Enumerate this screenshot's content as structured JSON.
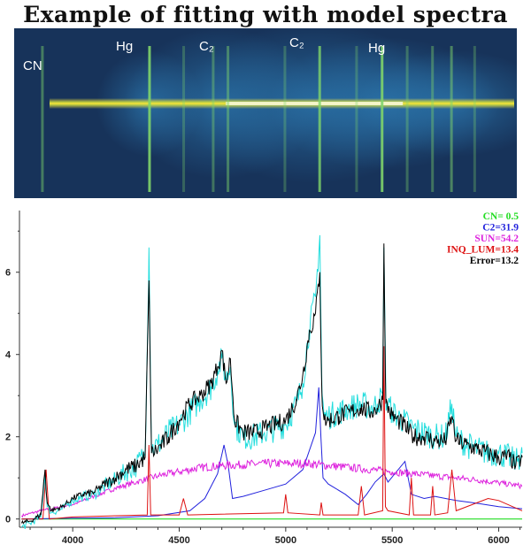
{
  "title": "Example of fitting with model spectra",
  "spectrum_image": {
    "labels": [
      {
        "text": "CN",
        "wavelength": 3840
      },
      {
        "text": "Hg",
        "wavelength": 4358
      },
      {
        "text": "C₂",
        "wavelength": 4700
      },
      {
        "text": "C₂",
        "wavelength": 5140
      },
      {
        "text": "Hg",
        "wavelength": 5461
      }
    ],
    "colors": {
      "background": "#17335a",
      "glow": "#2e7fb8",
      "core": "#ffe23a",
      "hot": "#ffffff"
    }
  },
  "chart_data": {
    "type": "line",
    "title": "",
    "xlabel": "",
    "ylabel": "",
    "xlim": [
      3750,
      6110
    ],
    "ylim": [
      -0.2,
      7.5
    ],
    "xticks": [
      4000,
      4500,
      5000,
      5500,
      6000
    ],
    "yticks": [
      0,
      2,
      4,
      6
    ],
    "grid": false,
    "legend_position": "top-right",
    "legend": [
      {
        "label": "CN= 0.5",
        "color": "#22dd22"
      },
      {
        "label": "C2=31.9",
        "color": "#2222dd"
      },
      {
        "label": "SUN=54.2",
        "color": "#dd22dd"
      },
      {
        "label": "INQ_LUM=13.4",
        "color": "#dd1111"
      },
      {
        "label": "Error=13.2",
        "color": "#000000"
      }
    ],
    "series": [
      {
        "color": "#22dd22",
        "x": [
          3760,
          4000,
          5000,
          6110
        ],
        "y": [
          0.0,
          0.0,
          0.0,
          0.0
        ]
      },
      {
        "color": "#2222dd",
        "x": [
          3760,
          4000,
          4200,
          4400,
          4550,
          4620,
          4680,
          4710,
          4730,
          4750,
          4800,
          4900,
          5000,
          5080,
          5140,
          5155,
          5165,
          5175,
          5200,
          5280,
          5340,
          5380,
          5420,
          5461,
          5480,
          5560,
          5590,
          5650,
          5700,
          5750,
          5800,
          5900,
          6000,
          6110
        ],
        "y": [
          0.0,
          0.02,
          0.03,
          0.08,
          0.2,
          0.5,
          1.1,
          1.8,
          1.3,
          0.5,
          0.55,
          0.7,
          0.85,
          1.2,
          2.1,
          3.2,
          2.0,
          1.0,
          0.85,
          0.6,
          0.35,
          0.6,
          0.9,
          1.1,
          0.9,
          1.4,
          0.6,
          0.5,
          0.55,
          0.5,
          0.45,
          0.38,
          0.3,
          0.25
        ]
      },
      {
        "color": "#dd22dd",
        "x": [
          3760,
          3850,
          4000,
          4100,
          4200,
          4300,
          4400,
          4500,
          4600,
          4700,
          4800,
          4900,
          5000,
          5100,
          5200,
          5300,
          5400,
          5500,
          5600,
          5700,
          5800,
          5900,
          6000,
          6110
        ],
        "y": [
          0.08,
          0.2,
          0.35,
          0.55,
          0.75,
          0.9,
          1.05,
          1.15,
          1.25,
          1.3,
          1.32,
          1.35,
          1.35,
          1.35,
          1.3,
          1.25,
          1.2,
          1.15,
          1.1,
          1.05,
          1.0,
          0.95,
          0.88,
          0.8
        ]
      },
      {
        "color": "#dd1111",
        "x": [
          3760,
          3860,
          3875,
          3890,
          4000,
          4350,
          4358,
          4366,
          4500,
          4520,
          4540,
          4990,
          5000,
          5010,
          5160,
          5167,
          5175,
          5340,
          5355,
          5370,
          5455,
          5461,
          5468,
          5480,
          5580,
          5590,
          5600,
          5680,
          5690,
          5700,
          5760,
          5780,
          5800,
          5900,
          5950,
          6000,
          6110
        ],
        "y": [
          0.0,
          0.0,
          1.2,
          0.0,
          0.05,
          0.1,
          1.8,
          0.1,
          0.1,
          0.5,
          0.1,
          0.15,
          0.6,
          0.15,
          0.1,
          0.4,
          0.1,
          0.1,
          0.8,
          0.1,
          0.2,
          4.2,
          0.3,
          0.2,
          0.1,
          1.0,
          0.1,
          0.1,
          0.8,
          0.1,
          0.15,
          1.2,
          0.2,
          0.4,
          0.5,
          0.45,
          0.2
        ]
      },
      {
        "color": "#000000",
        "x": [
          3760,
          3800,
          3850,
          3870,
          3880,
          3900,
          3950,
          4000,
          4050,
          4100,
          4150,
          4200,
          4250,
          4300,
          4340,
          4358,
          4370,
          4400,
          4450,
          4500,
          4550,
          4600,
          4650,
          4680,
          4700,
          4720,
          4740,
          4760,
          4800,
          4850,
          4900,
          4950,
          5000,
          5050,
          5080,
          5110,
          5140,
          5160,
          5170,
          5180,
          5200,
          5250,
          5300,
          5350,
          5400,
          5430,
          5455,
          5461,
          5470,
          5500,
          5550,
          5600,
          5650,
          5700,
          5750,
          5780,
          5800,
          5850,
          5900,
          5950,
          6000,
          6050,
          6080,
          6110
        ],
        "y": [
          -0.1,
          -0.05,
          0.1,
          1.2,
          0.4,
          0.2,
          0.3,
          0.5,
          0.6,
          0.65,
          0.85,
          1.0,
          1.2,
          1.3,
          1.5,
          5.8,
          1.6,
          1.7,
          2.0,
          2.4,
          2.8,
          3.0,
          3.3,
          3.7,
          4.1,
          3.3,
          3.9,
          2.4,
          2.1,
          2.1,
          2.2,
          2.3,
          2.4,
          2.9,
          3.5,
          4.5,
          5.0,
          6.0,
          3.0,
          2.4,
          2.4,
          2.5,
          2.6,
          2.7,
          2.6,
          2.7,
          2.9,
          6.7,
          2.8,
          2.5,
          2.3,
          2.0,
          2.0,
          1.9,
          1.9,
          2.5,
          1.9,
          1.8,
          1.7,
          1.6,
          1.5,
          1.5,
          1.3,
          1.5
        ]
      },
      {
        "color": "#22dddd",
        "x": [
          3760,
          3800,
          3850,
          3870,
          3880,
          3900,
          3950,
          4000,
          4050,
          4100,
          4150,
          4200,
          4250,
          4300,
          4340,
          4358,
          4370,
          4400,
          4450,
          4500,
          4550,
          4600,
          4650,
          4680,
          4700,
          4720,
          4740,
          4760,
          4800,
          4850,
          4900,
          4950,
          5000,
          5050,
          5080,
          5110,
          5140,
          5160,
          5170,
          5180,
          5200,
          5250,
          5300,
          5350,
          5400,
          5430,
          5455,
          5461,
          5470,
          5500,
          5550,
          5600,
          5650,
          5700,
          5750,
          5780,
          5800,
          5850,
          5900,
          5950,
          6000,
          6050,
          6080,
          6110
        ],
        "y": [
          -0.2,
          -0.1,
          0.05,
          1.1,
          0.3,
          0.15,
          0.25,
          0.45,
          0.55,
          0.6,
          0.8,
          0.95,
          1.15,
          1.3,
          1.6,
          6.6,
          1.7,
          1.8,
          2.1,
          2.3,
          2.6,
          2.9,
          3.2,
          3.6,
          3.9,
          3.4,
          3.7,
          2.3,
          2.0,
          2.0,
          2.1,
          2.2,
          2.3,
          2.8,
          3.3,
          4.6,
          5.4,
          6.9,
          3.1,
          2.5,
          2.5,
          2.6,
          2.7,
          2.8,
          2.7,
          2.8,
          3.0,
          6.6,
          2.9,
          2.6,
          2.4,
          2.2,
          2.1,
          2.0,
          2.0,
          2.8,
          2.0,
          1.8,
          1.7,
          1.6,
          1.6,
          1.5,
          1.4,
          1.6
        ]
      }
    ]
  }
}
